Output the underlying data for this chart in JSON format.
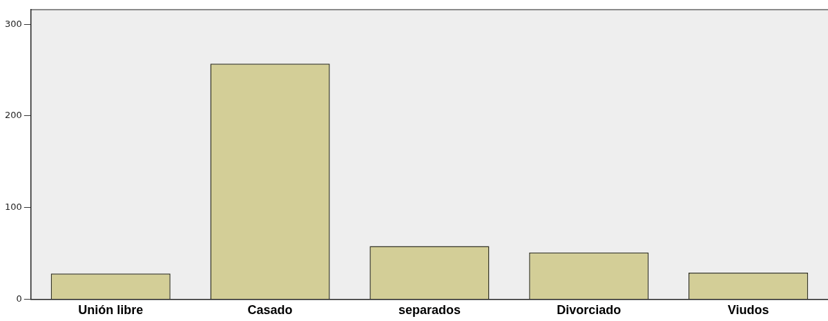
{
  "chart_data": {
    "type": "bar",
    "categories": [
      "Unión libre",
      "Casado",
      "separados",
      "Divorciado",
      "Viudos"
    ],
    "values": [
      28,
      257,
      58,
      51,
      29
    ],
    "color": "#d3ce97",
    "ylim": [
      0,
      316
    ],
    "yticks": [
      0,
      100,
      200,
      300
    ],
    "grid": false,
    "legend": false
  }
}
